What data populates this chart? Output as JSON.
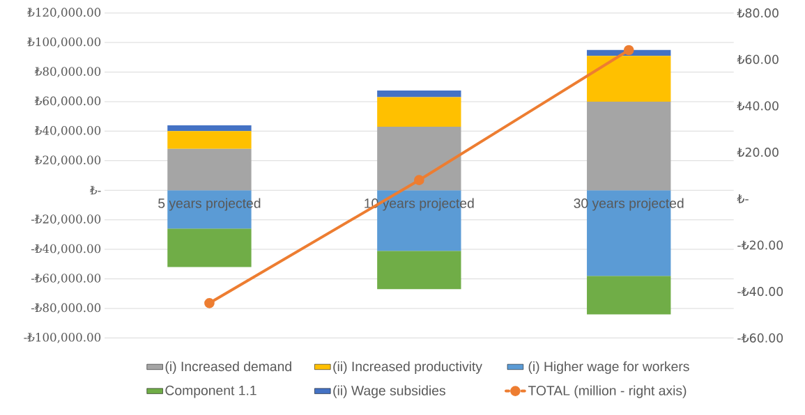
{
  "chart_data": {
    "type": "bar",
    "stacked": true,
    "grid": "y",
    "legend": "bottom",
    "categories": [
      "5 years projected",
      "10 years projected",
      "30 years projected"
    ],
    "series": [
      {
        "name": "(i) Increased demand",
        "color": "#a5a5a5",
        "values": [
          28000,
          43000,
          60000
        ]
      },
      {
        "name": "(ii) Increased productivity",
        "color": "#ffc000",
        "values": [
          12000,
          20000,
          31000
        ]
      },
      {
        "name": "(i) Higher wage for workers",
        "color": "#5b9bd5",
        "values": [
          -26000,
          -41000,
          -58000
        ]
      },
      {
        "name": "Component 1.1",
        "color": "#70ad47",
        "values": [
          -26000,
          -26000,
          -26000
        ]
      },
      {
        "name": "(ii) Wage subsidies",
        "color": "#4472c4",
        "values": [
          4000,
          4500,
          4000
        ]
      },
      {
        "name": "TOTAL (million - right axis)",
        "type": "line",
        "axis": "y2",
        "marker": "circle",
        "color": "#ed7d31",
        "values": [
          -45,
          8,
          64
        ]
      }
    ],
    "ylim": [
      -100000,
      120000
    ],
    "yticks": [
      {
        "value": -100000,
        "label": "-₺100,000.00"
      },
      {
        "value": -80000,
        "label": "-₺80,000.00"
      },
      {
        "value": -60000,
        "label": "-₺60,000.00"
      },
      {
        "value": -40000,
        "label": "-₺40,000.00"
      },
      {
        "value": -20000,
        "label": "-₺20,000.00"
      },
      {
        "value": 0,
        "label": "₺-"
      },
      {
        "value": 20000,
        "label": "₺20,000.00"
      },
      {
        "value": 40000,
        "label": "₺40,000.00"
      },
      {
        "value": 60000,
        "label": "₺60,000.00"
      },
      {
        "value": 80000,
        "label": "₺80,000.00"
      },
      {
        "value": 100000,
        "label": "₺100,000.00"
      },
      {
        "value": 120000,
        "label": "₺120,000.00"
      }
    ],
    "y2lim": [
      -60,
      80
    ],
    "y2ticks": [
      {
        "value": -60,
        "label": "-₺60.00"
      },
      {
        "value": -40,
        "label": "-₺40.00"
      },
      {
        "value": -20,
        "label": "-₺20.00"
      },
      {
        "value": 0,
        "label": "₺-"
      },
      {
        "value": 20,
        "label": "₺20.00"
      },
      {
        "value": 40,
        "label": "₺40.00"
      },
      {
        "value": 60,
        "label": "₺60.00"
      },
      {
        "value": 80,
        "label": "₺80.00"
      }
    ]
  }
}
